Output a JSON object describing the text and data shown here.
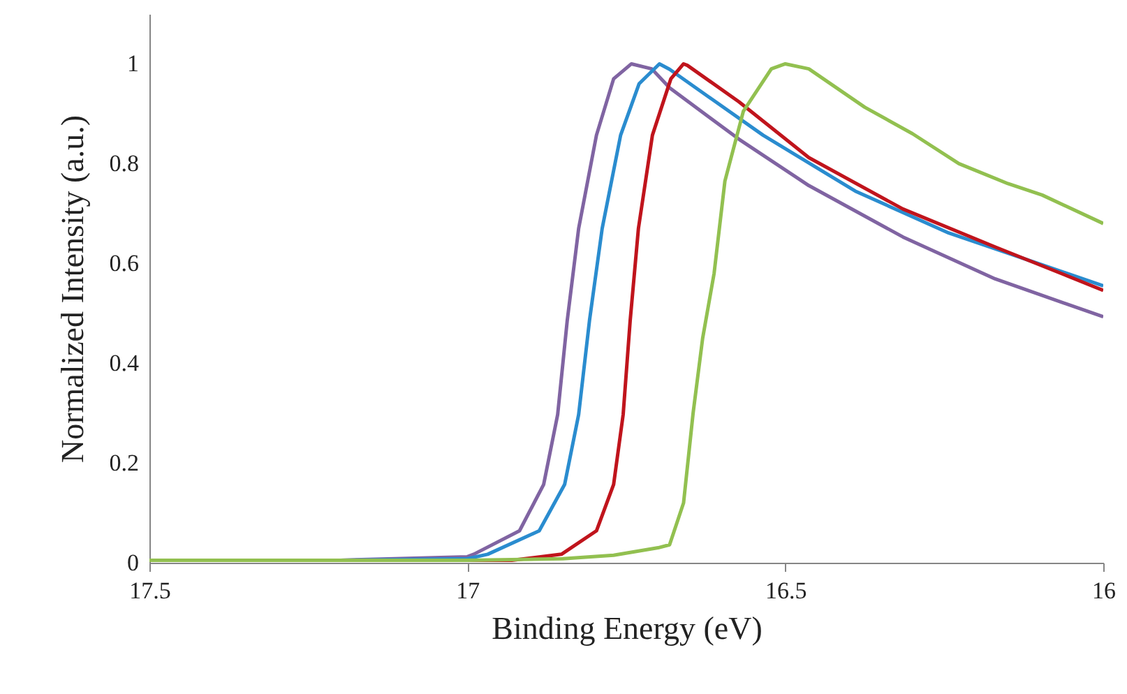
{
  "chart_data": {
    "type": "line",
    "xlabel": "Binding  Energy  (eV)",
    "ylabel": "Normalized  Intensity  (a.u.)",
    "xlim": [
      17.5,
      16
    ],
    "xticks": [
      17.5,
      17,
      16.5,
      16
    ],
    "ylim": [
      0,
      1.1
    ],
    "yticks": [
      0,
      {
        "value": 0.2,
        "label": "0.2"
      },
      {
        "value": 0.4,
        "label": "0.4"
      },
      {
        "value": 0.6,
        "label": "0.6"
      },
      {
        "value": 0.8,
        "label": "0.8"
      },
      1
    ],
    "grid": false,
    "marker": "none",
    "line_style": "solid",
    "series": [
      {
        "color": "#8064a2",
        "x": [
          17.5,
          17.2,
          17.0,
          16.99,
          16.918,
          16.88,
          16.858,
          16.843,
          16.825,
          16.797,
          16.77,
          16.742,
          16.71,
          16.682,
          16.573,
          16.463,
          16.315,
          16.17,
          16.0
        ],
        "values": [
          0.005,
          0.005,
          0.012,
          0.017,
          0.064,
          0.157,
          0.297,
          0.485,
          0.67,
          0.857,
          0.97,
          1.0,
          0.99,
          0.952,
          0.849,
          0.756,
          0.653,
          0.569,
          0.493
        ]
      },
      {
        "color": "#2a8ccf",
        "x": [
          17.5,
          17.2,
          17.0,
          16.968,
          16.887,
          16.847,
          16.825,
          16.808,
          16.788,
          16.759,
          16.73,
          16.698,
          16.682,
          16.535,
          16.39,
          16.243,
          16.096,
          16.0
        ],
        "values": [
          0.005,
          0.005,
          0.008,
          0.017,
          0.064,
          0.157,
          0.297,
          0.485,
          0.67,
          0.857,
          0.96,
          1.0,
          0.989,
          0.857,
          0.745,
          0.661,
          0.597,
          0.555
        ]
      },
      {
        "color": "#c0141c",
        "x": [
          17.5,
          17.2,
          16.93,
          16.852,
          16.797,
          16.77,
          16.755,
          16.744,
          16.731,
          16.709,
          16.68,
          16.66,
          16.654,
          16.573,
          16.463,
          16.315,
          16.17,
          16.0
        ],
        "values": [
          0.005,
          0.005,
          0.005,
          0.017,
          0.064,
          0.157,
          0.297,
          0.485,
          0.67,
          0.857,
          0.97,
          1.0,
          0.997,
          0.924,
          0.812,
          0.709,
          0.633,
          0.546
        ]
      },
      {
        "color": "#92c050",
        "x": [
          17.5,
          17.0,
          16.85,
          16.77,
          16.7,
          16.682,
          16.66,
          16.645,
          16.63,
          16.612,
          16.595,
          16.566,
          16.522,
          16.5,
          16.463,
          16.375,
          16.3,
          16.227,
          16.15,
          16.096,
          16.0
        ],
        "values": [
          0.005,
          0.005,
          0.008,
          0.015,
          0.03,
          0.036,
          0.12,
          0.3,
          0.45,
          0.58,
          0.765,
          0.905,
          0.99,
          1.0,
          0.99,
          0.913,
          0.86,
          0.8,
          0.76,
          0.737,
          0.68
        ]
      }
    ]
  }
}
